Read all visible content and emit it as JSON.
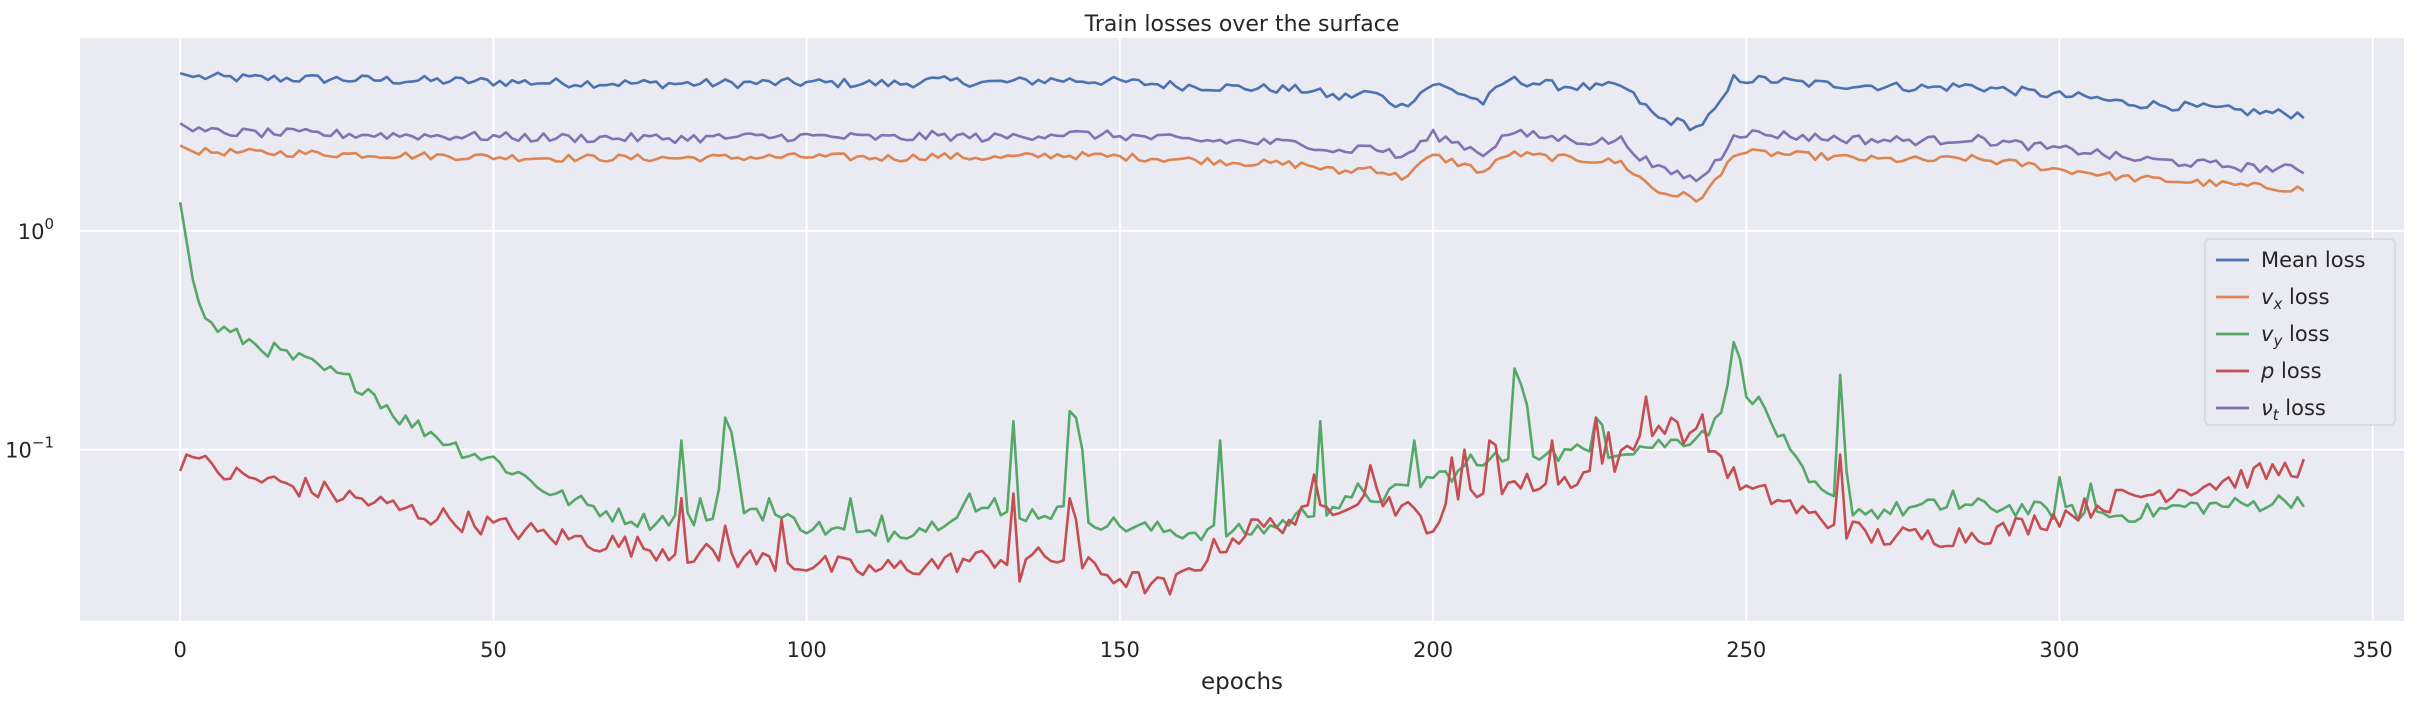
{
  "chart_data": {
    "type": "line",
    "title": "Train losses over the surface",
    "xlabel": "epochs",
    "ylabel": "",
    "yscale": "log",
    "xlim": [
      -16,
      355
    ],
    "ylim": [
      0.0165,
      7.6
    ],
    "xticks": [
      0,
      50,
      100,
      150,
      200,
      250,
      300,
      350
    ],
    "yticks": [
      {
        "value": 1.0,
        "base": "10",
        "exp": "0"
      },
      {
        "value": 0.1,
        "base": "10",
        "exp": "−1"
      }
    ],
    "grid": true,
    "legend_position": "right",
    "series": [
      {
        "name": "Mean loss",
        "color": "#4c72b0",
        "anchors": [
          [
            0,
            5.25
          ],
          [
            2,
            5.05
          ],
          [
            10,
            4.98
          ],
          [
            20,
            4.95
          ],
          [
            40,
            4.85
          ],
          [
            60,
            4.75
          ],
          [
            80,
            4.7
          ],
          [
            100,
            4.75
          ],
          [
            115,
            4.7
          ],
          [
            120,
            4.85
          ],
          [
            130,
            4.75
          ],
          [
            140,
            4.9
          ],
          [
            150,
            4.8
          ],
          [
            160,
            4.6
          ],
          [
            170,
            4.5
          ],
          [
            180,
            4.4
          ],
          [
            185,
            4.05
          ],
          [
            190,
            4.3
          ],
          [
            195,
            3.7
          ],
          [
            200,
            4.7
          ],
          [
            205,
            4.2
          ],
          [
            208,
            3.85
          ],
          [
            212,
            4.9
          ],
          [
            220,
            4.6
          ],
          [
            226,
            4.5
          ],
          [
            230,
            4.6
          ],
          [
            233,
            3.9
          ],
          [
            236,
            3.25
          ],
          [
            240,
            3.1
          ],
          [
            242,
            2.95
          ],
          [
            244,
            3.3
          ],
          [
            246,
            3.8
          ],
          [
            248,
            4.95
          ],
          [
            255,
            4.85
          ],
          [
            260,
            4.7
          ],
          [
            270,
            4.6
          ],
          [
            280,
            4.5
          ],
          [
            285,
            4.6
          ],
          [
            295,
            4.3
          ],
          [
            300,
            4.15
          ],
          [
            305,
            4.05
          ],
          [
            310,
            3.85
          ],
          [
            320,
            3.7
          ],
          [
            330,
            3.5
          ],
          [
            339,
            3.4
          ]
        ],
        "noise": 0.05
      },
      {
        "name": "$v_x$ loss",
        "label_main": "v",
        "label_sub": "x",
        "label_rest": " loss",
        "color": "#dd8452",
        "anchors": [
          [
            0,
            2.45
          ],
          [
            2,
            2.3
          ],
          [
            10,
            2.28
          ],
          [
            20,
            2.26
          ],
          [
            40,
            2.2
          ],
          [
            60,
            2.15
          ],
          [
            80,
            2.15
          ],
          [
            100,
            2.18
          ],
          [
            115,
            2.15
          ],
          [
            120,
            2.2
          ],
          [
            130,
            2.15
          ],
          [
            140,
            2.22
          ],
          [
            150,
            2.18
          ],
          [
            160,
            2.12
          ],
          [
            170,
            2.05
          ],
          [
            180,
            2.0
          ],
          [
            185,
            1.85
          ],
          [
            190,
            1.95
          ],
          [
            195,
            1.75
          ],
          [
            200,
            2.2
          ],
          [
            205,
            2.0
          ],
          [
            208,
            1.85
          ],
          [
            212,
            2.25
          ],
          [
            220,
            2.15
          ],
          [
            226,
            2.1
          ],
          [
            230,
            2.05
          ],
          [
            233,
            1.75
          ],
          [
            236,
            1.5
          ],
          [
            240,
            1.45
          ],
          [
            242,
            1.38
          ],
          [
            244,
            1.55
          ],
          [
            246,
            1.8
          ],
          [
            248,
            2.28
          ],
          [
            255,
            2.25
          ],
          [
            260,
            2.2
          ],
          [
            270,
            2.12
          ],
          [
            280,
            2.1
          ],
          [
            285,
            2.15
          ],
          [
            295,
            2.0
          ],
          [
            300,
            1.9
          ],
          [
            305,
            1.85
          ],
          [
            310,
            1.75
          ],
          [
            320,
            1.68
          ],
          [
            330,
            1.6
          ],
          [
            339,
            1.55
          ]
        ],
        "noise": 0.04
      },
      {
        "name": "$v_y$ loss",
        "label_main": "v",
        "label_sub": "y",
        "label_rest": " loss",
        "color": "#55a868",
        "anchors": [
          [
            0,
            1.35
          ],
          [
            1,
            0.9
          ],
          [
            2,
            0.6
          ],
          [
            3,
            0.45
          ],
          [
            5,
            0.37
          ],
          [
            10,
            0.32
          ],
          [
            20,
            0.25
          ],
          [
            30,
            0.19
          ],
          [
            35,
            0.14
          ],
          [
            40,
            0.12
          ],
          [
            45,
            0.1
          ],
          [
            50,
            0.09
          ],
          [
            55,
            0.075
          ],
          [
            60,
            0.062
          ],
          [
            70,
            0.05
          ],
          [
            75,
            0.047
          ],
          [
            80,
            0.05
          ],
          [
            85,
            0.045
          ],
          [
            90,
            0.055
          ],
          [
            100,
            0.045
          ],
          [
            110,
            0.04
          ],
          [
            120,
            0.045
          ],
          [
            125,
            0.055
          ],
          [
            130,
            0.05
          ],
          [
            140,
            0.052
          ],
          [
            150,
            0.045
          ],
          [
            160,
            0.042
          ],
          [
            170,
            0.042
          ],
          [
            175,
            0.045
          ],
          [
            180,
            0.052
          ],
          [
            190,
            0.06
          ],
          [
            195,
            0.065
          ],
          [
            200,
            0.075
          ],
          [
            205,
            0.08
          ],
          [
            210,
            0.09
          ],
          [
            215,
            0.1
          ],
          [
            220,
            0.095
          ],
          [
            225,
            0.1
          ],
          [
            230,
            0.1
          ],
          [
            235,
            0.105
          ],
          [
            240,
            0.11
          ],
          [
            245,
            0.13
          ],
          [
            248,
            0.22
          ],
          [
            250,
            0.19
          ],
          [
            253,
            0.15
          ],
          [
            255,
            0.12
          ],
          [
            258,
            0.085
          ],
          [
            260,
            0.07
          ],
          [
            263,
            0.06
          ],
          [
            266,
            0.055
          ],
          [
            270,
            0.052
          ],
          [
            280,
            0.055
          ],
          [
            290,
            0.055
          ],
          [
            300,
            0.052
          ],
          [
            310,
            0.05
          ],
          [
            320,
            0.055
          ],
          [
            330,
            0.056
          ],
          [
            339,
            0.06
          ]
        ],
        "noise": 0.09,
        "spikes": [
          [
            80,
            0.11
          ],
          [
            83,
            0.06
          ],
          [
            86,
            0.066
          ],
          [
            87,
            0.14
          ],
          [
            88,
            0.12
          ],
          [
            89,
            0.08
          ],
          [
            94,
            0.06
          ],
          [
            107,
            0.06
          ],
          [
            112,
            0.05
          ],
          [
            126,
            0.063
          ],
          [
            130,
            0.06
          ],
          [
            133,
            0.135
          ],
          [
            142,
            0.15
          ],
          [
            143,
            0.14
          ],
          [
            144,
            0.1
          ],
          [
            166,
            0.11
          ],
          [
            182,
            0.135
          ],
          [
            188,
            0.07
          ],
          [
            197,
            0.11
          ],
          [
            206,
            0.095
          ],
          [
            209,
            0.09
          ],
          [
            213,
            0.235
          ],
          [
            214,
            0.2
          ],
          [
            215,
            0.16
          ],
          [
            218,
            0.095
          ],
          [
            226,
            0.14
          ],
          [
            227,
            0.13
          ],
          [
            248,
            0.31
          ],
          [
            249,
            0.26
          ],
          [
            265,
            0.22
          ],
          [
            266,
            0.08
          ],
          [
            283,
            0.065
          ],
          [
            300,
            0.075
          ],
          [
            305,
            0.07
          ]
        ]
      },
      {
        "name": "$p$ loss",
        "label_main": "p",
        "label_sub": "",
        "label_rest": " loss",
        "color": "#c44e52",
        "anchors": [
          [
            0,
            0.08
          ],
          [
            1,
            0.095
          ],
          [
            3,
            0.09
          ],
          [
            5,
            0.08
          ],
          [
            10,
            0.075
          ],
          [
            20,
            0.067
          ],
          [
            30,
            0.058
          ],
          [
            40,
            0.05
          ],
          [
            50,
            0.045
          ],
          [
            60,
            0.04
          ],
          [
            70,
            0.037
          ],
          [
            80,
            0.034
          ],
          [
            90,
            0.032
          ],
          [
            100,
            0.03
          ],
          [
            110,
            0.028
          ],
          [
            120,
            0.03
          ],
          [
            130,
            0.032
          ],
          [
            140,
            0.032
          ],
          [
            150,
            0.026
          ],
          [
            158,
            0.023
          ],
          [
            165,
            0.035
          ],
          [
            170,
            0.042
          ],
          [
            180,
            0.05
          ],
          [
            190,
            0.065
          ],
          [
            200,
            0.045
          ],
          [
            205,
            0.06
          ],
          [
            210,
            0.07
          ],
          [
            220,
            0.07
          ],
          [
            230,
            0.09
          ],
          [
            235,
            0.13
          ],
          [
            240,
            0.12
          ],
          [
            245,
            0.1
          ],
          [
            248,
            0.075
          ],
          [
            250,
            0.065
          ],
          [
            255,
            0.06
          ],
          [
            260,
            0.05
          ],
          [
            265,
            0.045
          ],
          [
            270,
            0.04
          ],
          [
            280,
            0.04
          ],
          [
            290,
            0.042
          ],
          [
            300,
            0.05
          ],
          [
            310,
            0.06
          ],
          [
            320,
            0.067
          ],
          [
            330,
            0.075
          ],
          [
            339,
            0.085
          ]
        ],
        "noise": 0.12,
        "spikes": [
          [
            80,
            0.06
          ],
          [
            87,
            0.045
          ],
          [
            96,
            0.048
          ],
          [
            133,
            0.063
          ],
          [
            134,
            0.025
          ],
          [
            142,
            0.06
          ],
          [
            143,
            0.048
          ],
          [
            171,
            0.048
          ],
          [
            181,
            0.077
          ],
          [
            190,
            0.085
          ],
          [
            203,
            0.092
          ],
          [
            205,
            0.1
          ],
          [
            209,
            0.11
          ],
          [
            210,
            0.105
          ],
          [
            219,
            0.11
          ],
          [
            226,
            0.14
          ],
          [
            228,
            0.12
          ],
          [
            234,
            0.175
          ],
          [
            238,
            0.14
          ],
          [
            243,
            0.145
          ],
          [
            265,
            0.095
          ]
        ]
      },
      {
        "name": "$\\nu_t$ loss",
        "label_main": "ν",
        "label_sub": "t",
        "label_rest": " loss",
        "color": "#8172b3",
        "anchors": [
          [
            0,
            3.1
          ],
          [
            2,
            2.85
          ],
          [
            10,
            2.8
          ],
          [
            20,
            2.78
          ],
          [
            40,
            2.72
          ],
          [
            60,
            2.66
          ],
          [
            80,
            2.65
          ],
          [
            100,
            2.7
          ],
          [
            115,
            2.65
          ],
          [
            120,
            2.72
          ],
          [
            130,
            2.66
          ],
          [
            140,
            2.78
          ],
          [
            150,
            2.72
          ],
          [
            160,
            2.6
          ],
          [
            170,
            2.55
          ],
          [
            180,
            2.5
          ],
          [
            185,
            2.3
          ],
          [
            190,
            2.45
          ],
          [
            195,
            2.15
          ],
          [
            200,
            2.75
          ],
          [
            205,
            2.45
          ],
          [
            208,
            2.25
          ],
          [
            212,
            2.8
          ],
          [
            220,
            2.65
          ],
          [
            226,
            2.55
          ],
          [
            230,
            2.6
          ],
          [
            233,
            2.2
          ],
          [
            236,
            1.9
          ],
          [
            240,
            1.8
          ],
          [
            242,
            1.7
          ],
          [
            244,
            1.9
          ],
          [
            246,
            2.2
          ],
          [
            248,
            2.8
          ],
          [
            255,
            2.75
          ],
          [
            260,
            2.68
          ],
          [
            270,
            2.6
          ],
          [
            280,
            2.58
          ],
          [
            285,
            2.65
          ],
          [
            295,
            2.45
          ],
          [
            300,
            2.35
          ],
          [
            305,
            2.3
          ],
          [
            310,
            2.15
          ],
          [
            320,
            2.05
          ],
          [
            330,
            1.95
          ],
          [
            339,
            1.9
          ]
        ],
        "noise": 0.05
      }
    ]
  }
}
